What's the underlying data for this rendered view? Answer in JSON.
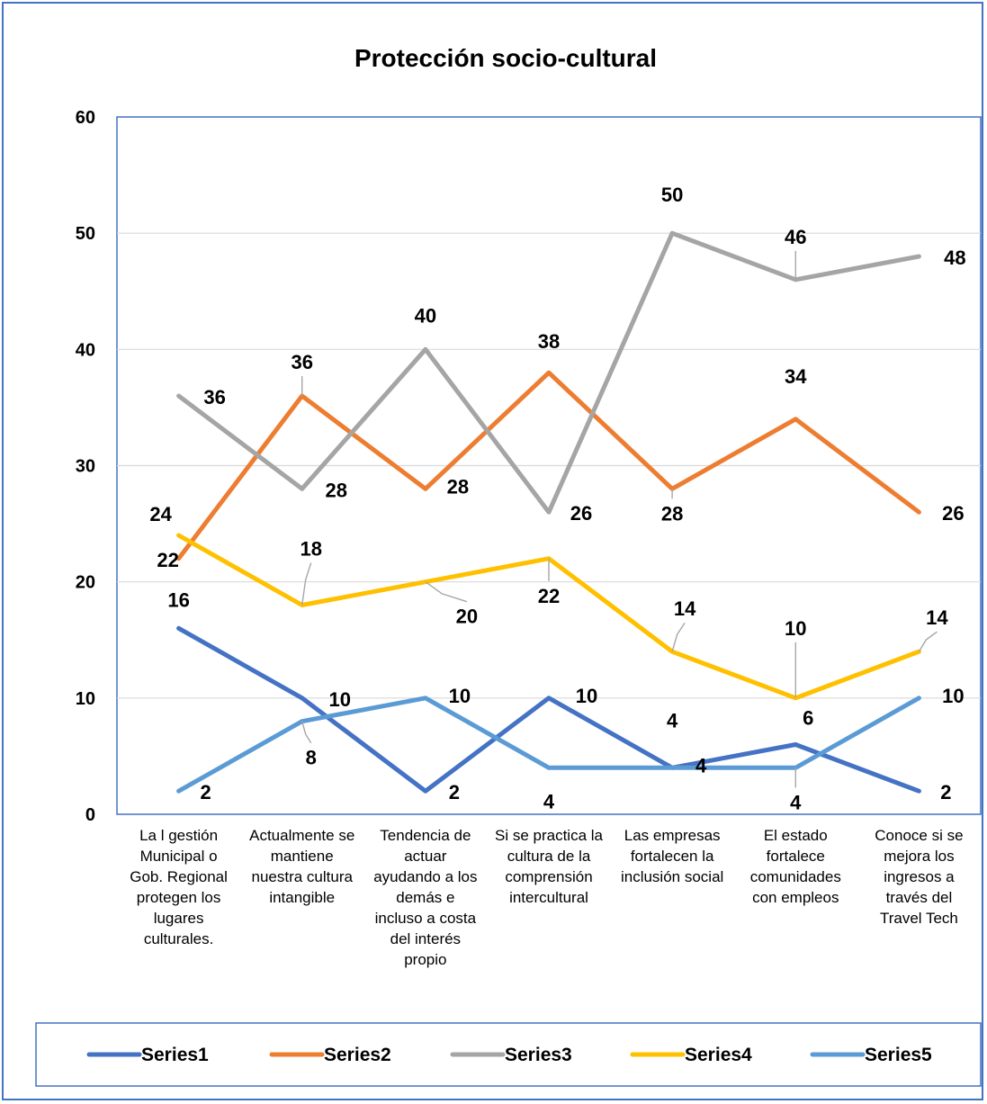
{
  "chart_data": {
    "type": "line",
    "title": "Protección socio-cultural",
    "xlabel": "",
    "ylabel": "",
    "ylim": [
      0,
      60
    ],
    "yticks": [
      0,
      10,
      20,
      30,
      40,
      50,
      60
    ],
    "grid": true,
    "legend_position": "bottom",
    "categories": [
      "La l gestión Municipal o Gob. Regional protegen los lugares culturales.",
      "Actualmente se mantiene nuestra cultura intangible",
      "Tendencia de actuar ayudando a los demás e incluso a costa del interés propio",
      "Si se practica la cultura de la comprensión intercultural",
      "Las empresas fortalecen la inclusión social",
      "El estado fortalece comunidades con empleos",
      "Conoce si se mejora los ingresos a través del Travel Tech"
    ],
    "category_lines": [
      [
        "La l gestión",
        "Municipal o",
        "Gob. Regional",
        "protegen los",
        "lugares",
        "culturales."
      ],
      [
        "Actualmente se",
        "mantiene",
        "nuestra cultura",
        "intangible"
      ],
      [
        "Tendencia de",
        "actuar",
        "ayudando a los",
        "demás e",
        "incluso a costa",
        "del interés",
        "propio"
      ],
      [
        "Si se practica la",
        "cultura de la",
        "comprensión",
        "intercultural"
      ],
      [
        "Las empresas",
        "fortalecen la",
        "inclusión social"
      ],
      [
        "El estado",
        "fortalece",
        "comunidades",
        "con empleos"
      ],
      [
        "Conoce si se",
        "mejora los",
        "ingresos a",
        "través del",
        "Travel Tech"
      ]
    ],
    "series": [
      {
        "name": "Series1",
        "color": "#4472c4",
        "values": [
          16,
          10,
          2,
          10,
          4,
          6,
          2
        ]
      },
      {
        "name": "Series2",
        "color": "#ed7d31",
        "values": [
          22,
          36,
          28,
          38,
          28,
          34,
          26
        ]
      },
      {
        "name": "Series3",
        "color": "#a5a5a5",
        "values": [
          36,
          28,
          40,
          26,
          50,
          46,
          48
        ]
      },
      {
        "name": "Series4",
        "color": "#ffc000",
        "values": [
          24,
          18,
          20,
          22,
          14,
          10,
          14
        ]
      },
      {
        "name": "Series5",
        "color": "#5b9bd5",
        "values": [
          2,
          8,
          10,
          4,
          4,
          4,
          10
        ]
      }
    ]
  }
}
